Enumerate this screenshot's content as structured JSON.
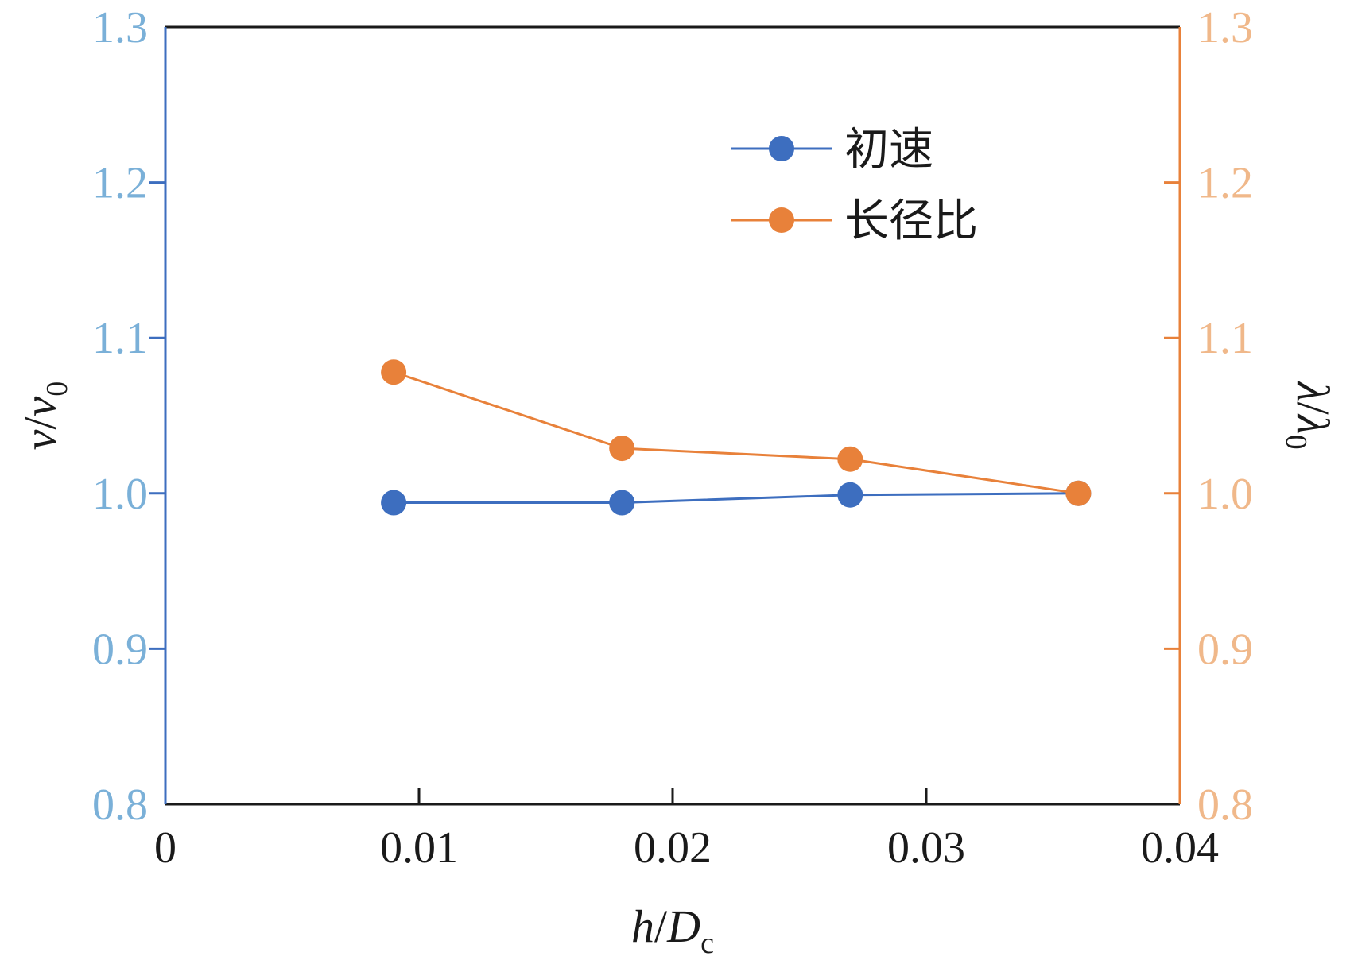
{
  "chart_data": {
    "type": "line",
    "x": [
      0.009,
      0.018,
      0.027,
      0.036
    ],
    "series": [
      {
        "name": "初速",
        "axis": "left",
        "color": "#3d6ebf",
        "values": [
          0.994,
          0.994,
          0.999,
          1.0
        ]
      },
      {
        "name": "长径比",
        "axis": "right",
        "color": "#e8813a",
        "values": [
          1.078,
          1.029,
          1.022,
          1.0
        ]
      }
    ],
    "xlim": [
      0,
      0.04
    ],
    "xticks": [
      "0",
      "0.01",
      "0.02",
      "0.03",
      "0.04"
    ],
    "ylim_left": [
      0.8,
      1.3
    ],
    "ylim_right": [
      0.8,
      1.3
    ],
    "yticks_left": [
      "0.8",
      "0.9",
      "1.0",
      "1.1",
      "1.2",
      "1.3"
    ],
    "yticks_right": [
      "0.8",
      "0.9",
      "1.0",
      "1.1",
      "1.2",
      "1.3"
    ],
    "xlabel": {
      "var": "h",
      "slash": "/",
      "var2": "D",
      "sub": "c"
    },
    "ylabel_left": {
      "var": "v",
      "slash": "/",
      "var2": "v",
      "sub": "0"
    },
    "ylabel_right": {
      "var": "λ",
      "slash": "/",
      "var2": "λ",
      "sub": "0"
    },
    "legend": {
      "position": "top-right",
      "entries": [
        "初速",
        "长径比"
      ]
    },
    "colors": {
      "left_axis": "#3d6ebf",
      "right_axis": "#e8813a",
      "left_ticks": "#7ab0d8",
      "right_ticks": "#f0b88a"
    },
    "grid": false
  }
}
